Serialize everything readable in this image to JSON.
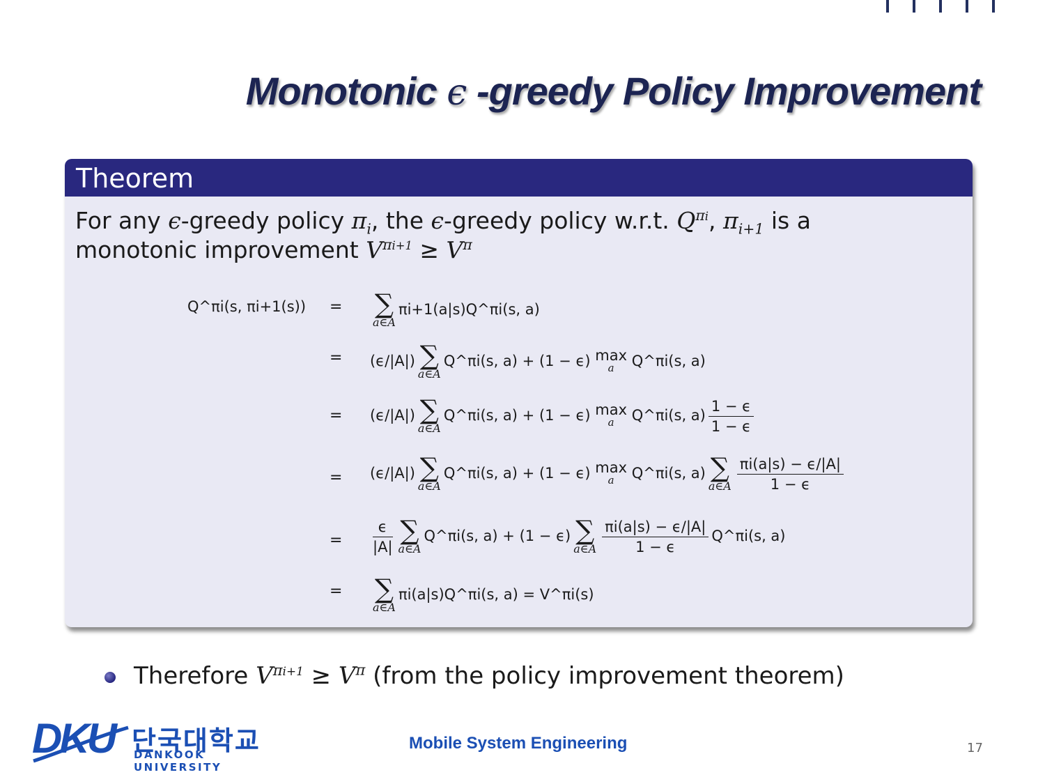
{
  "slide": {
    "title_pre": "Monotonic ",
    "title_eps": "ϵ",
    "title_post": " -greedy Policy Improvement",
    "page_number": "17"
  },
  "theorem": {
    "header": "Theorem",
    "statement": {
      "p1": "For any ",
      "eps1": "ϵ",
      "p2": "-greedy policy ",
      "pi_i": "π",
      "sub_i": "i",
      "p3": ", the ",
      "eps2": "ϵ",
      "p4": "-greedy policy w.r.t. ",
      "Q": "Q",
      "Q_sup": "π",
      "Q_sup_sub": "i",
      "p5": ", ",
      "pi_next": "π",
      "pi_next_sub": "i+1",
      "p6": " is a",
      "p7": "monotonic improvement ",
      "V1": "V",
      "V1_sup": "π",
      "V1_sup_sub": "i+1",
      "ge": " ≥ ",
      "V2": "V",
      "V2_sup": "π"
    },
    "equations": {
      "lhs": "Q^πi(s, πi+1(s))",
      "rel_eq": "=",
      "rel_ge": "≥",
      "sum_limit": "a∈A",
      "sum_sign": "∑",
      "max_word": "max",
      "max_sub": "a",
      "l1": "πi+1(a|s)Q^πi(s, a)",
      "l2_a": "(ϵ/|A|)",
      "l2_b": "Q^πi(s, a) + (1 − ϵ)",
      "l2_c": "Q^πi(s, a)",
      "l3_num": "1 − ϵ",
      "l3_den": "1 − ϵ",
      "l4_num": "πi(a|s) − ϵ/|A|",
      "l4_den": "1 − ϵ",
      "l5_fnum": "ϵ",
      "l5_fden": "|A|",
      "l5_mid": "Q^πi(s, a) + (1 − ϵ)",
      "l5_end": "Q^πi(s, a)",
      "l6": "πi(a|s)Q^πi(s, a) = V^πi(s)"
    }
  },
  "bullet": {
    "p1": "Therefore ",
    "V1": "V",
    "V1_sup": "π",
    "V1_sup_sub": "i+1",
    "ge": " ≥ ",
    "V2": "V",
    "V2_sup": "π",
    "p2": " (from the policy improvement theorem)"
  },
  "footer": {
    "logo_mark": "DKU",
    "logo_korean": "단국대학교",
    "logo_english": "DANKOOK UNIVERSITY",
    "course": "Mobile System Engineering"
  },
  "colors": {
    "title": "#1c2452",
    "theorem_header_bg": "#29287f",
    "theorem_body_bg": "#e9e9f4",
    "brand_blue": "#1b4fb4"
  }
}
